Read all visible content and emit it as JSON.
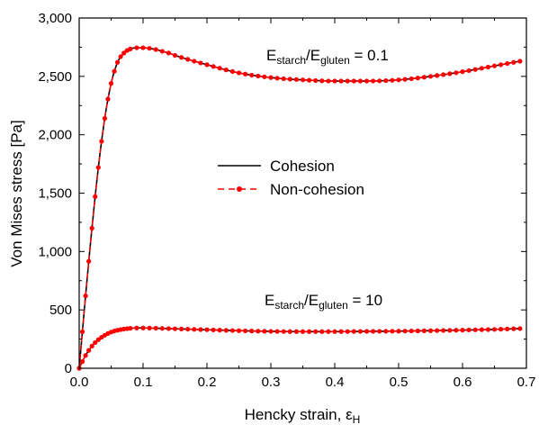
{
  "chart_data": {
    "type": "line",
    "xlabel": "Hencky strain, ε",
    "xlabel_sub": "H",
    "ylabel": "Von Mises stress [Pa]",
    "xlim": [
      0.0,
      0.7
    ],
    "ylim": [
      0,
      3000
    ],
    "x_ticks": [
      "0.0",
      "0.1",
      "0.2",
      "0.3",
      "0.4",
      "0.5",
      "0.6",
      "0.7"
    ],
    "y_ticks": [
      "0",
      "500",
      "1,000",
      "1,500",
      "2,000",
      "2,500",
      "3,000"
    ],
    "grid": false,
    "legend_position": "center",
    "legend": [
      {
        "label": "Cohesion",
        "color": "#000000",
        "style": "solid line"
      },
      {
        "label": "Non-cohesion",
        "color": "#ff0000",
        "style": "dashed line with circle markers"
      }
    ],
    "annotations": [
      {
        "main": "E",
        "sub1": "starch",
        "mid": "/E",
        "sub2": "gluten",
        "tail": " = 0.1"
      },
      {
        "main": "E",
        "sub1": "starch",
        "mid": "/E",
        "sub2": "gluten",
        "tail": " = 10"
      }
    ],
    "curves": [
      {
        "ratio": 0.1,
        "x": [
          0.0,
          0.01,
          0.02,
          0.03,
          0.04,
          0.05,
          0.06,
          0.07,
          0.08,
          0.09,
          0.1,
          0.11,
          0.12,
          0.13,
          0.14,
          0.15,
          0.2,
          0.25,
          0.3,
          0.35,
          0.4,
          0.45,
          0.5,
          0.55,
          0.6,
          0.65,
          0.69
        ],
        "y": [
          0,
          620,
          1200,
          1720,
          2140,
          2440,
          2620,
          2700,
          2735,
          2745,
          2745,
          2740,
          2730,
          2715,
          2700,
          2680,
          2600,
          2530,
          2490,
          2470,
          2460,
          2460,
          2470,
          2500,
          2540,
          2590,
          2630
        ]
      },
      {
        "ratio": 10,
        "x": [
          0.0,
          0.01,
          0.02,
          0.03,
          0.04,
          0.05,
          0.06,
          0.07,
          0.08,
          0.09,
          0.1,
          0.12,
          0.15,
          0.2,
          0.25,
          0.3,
          0.35,
          0.4,
          0.45,
          0.5,
          0.55,
          0.6,
          0.65,
          0.69
        ],
        "y": [
          0,
          110,
          190,
          245,
          283,
          310,
          326,
          336,
          342,
          345,
          345,
          343,
          338,
          330,
          322,
          316,
          314,
          314,
          316,
          318,
          322,
          327,
          333,
          340
        ]
      }
    ],
    "series": [
      {
        "name": "Cohesion",
        "color": "#000000"
      },
      {
        "name": "Non-cohesion",
        "color": "#ff0000"
      }
    ]
  }
}
